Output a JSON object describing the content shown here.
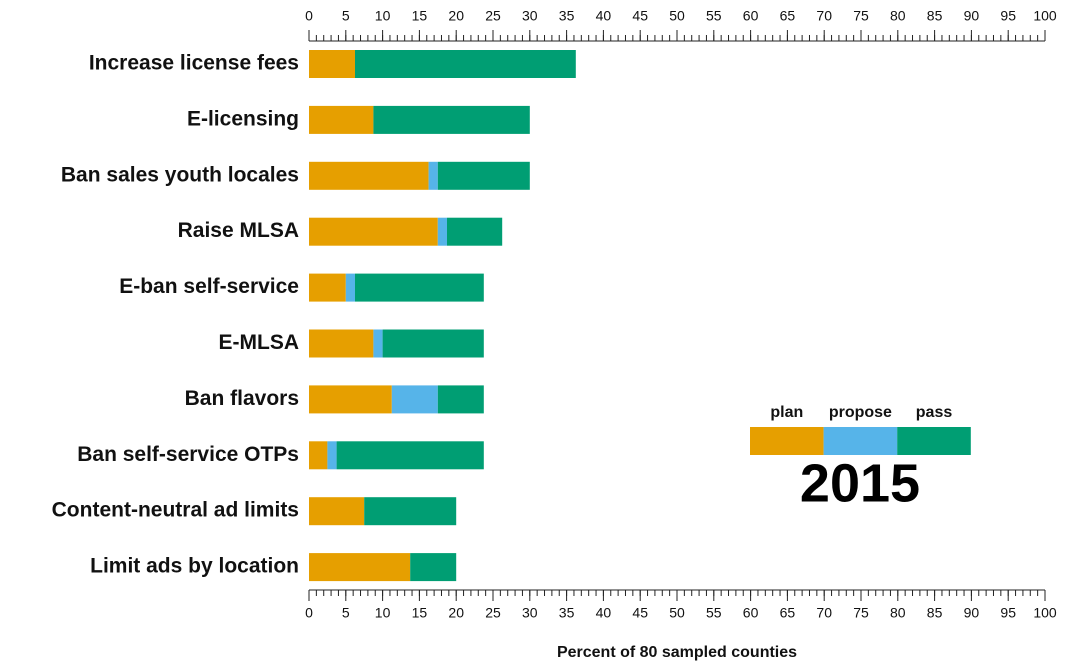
{
  "chart_data": {
    "type": "stacked_barh",
    "categories": [
      "Increase license fees",
      "E-licensing",
      "Ban sales youth locales",
      "Raise MLSA",
      "E-ban self-service",
      "E-MLSA",
      "Ban flavors",
      "Ban self-service OTPs",
      "Content-neutral ad limits",
      "Limit ads by location"
    ],
    "series": [
      {
        "name": "plan",
        "color": "#e69f00",
        "values": [
          6.25,
          8.75,
          16.25,
          17.5,
          5,
          8.75,
          11.25,
          2.5,
          7.5,
          13.75
        ]
      },
      {
        "name": "propose",
        "color": "#56b4e9",
        "values": [
          0,
          0,
          1.25,
          1.25,
          1.25,
          1.25,
          6.25,
          1.25,
          0,
          0
        ]
      },
      {
        "name": "pass",
        "color": "#009e73",
        "values": [
          30,
          21.25,
          12.5,
          7.5,
          17.5,
          13.75,
          6.25,
          20,
          12.5,
          6.25
        ]
      }
    ],
    "xlabel": "Percent of 80 sampled counties",
    "annotation": "2015",
    "xlim": [
      0,
      100
    ],
    "xticks": [
      0,
      5,
      10,
      15,
      20,
      25,
      30,
      35,
      40,
      45,
      50,
      55,
      60,
      65,
      70,
      75,
      80,
      85,
      90,
      95,
      100
    ],
    "xminorticks": [
      0,
      1,
      2,
      3,
      4,
      5,
      6,
      7,
      8,
      9,
      10,
      11,
      12,
      13,
      14,
      15,
      16,
      17,
      18,
      19,
      20,
      21,
      22,
      23,
      24,
      25,
      26,
      27,
      28,
      29,
      30,
      31,
      32,
      33,
      34,
      35,
      36,
      37,
      38,
      39,
      40,
      41,
      42,
      43,
      44,
      45,
      46,
      47,
      48,
      49,
      50,
      51,
      52,
      53,
      54,
      55,
      56,
      57,
      58,
      59,
      60,
      61,
      62,
      63,
      64,
      65,
      66,
      67,
      68,
      69,
      70,
      71,
      72,
      73,
      74,
      75,
      76,
      77,
      78,
      79,
      80,
      81,
      82,
      83,
      84,
      85,
      86,
      87,
      88,
      89,
      90,
      91,
      92,
      93,
      94,
      95,
      96,
      97,
      98,
      99,
      100
    ]
  }
}
